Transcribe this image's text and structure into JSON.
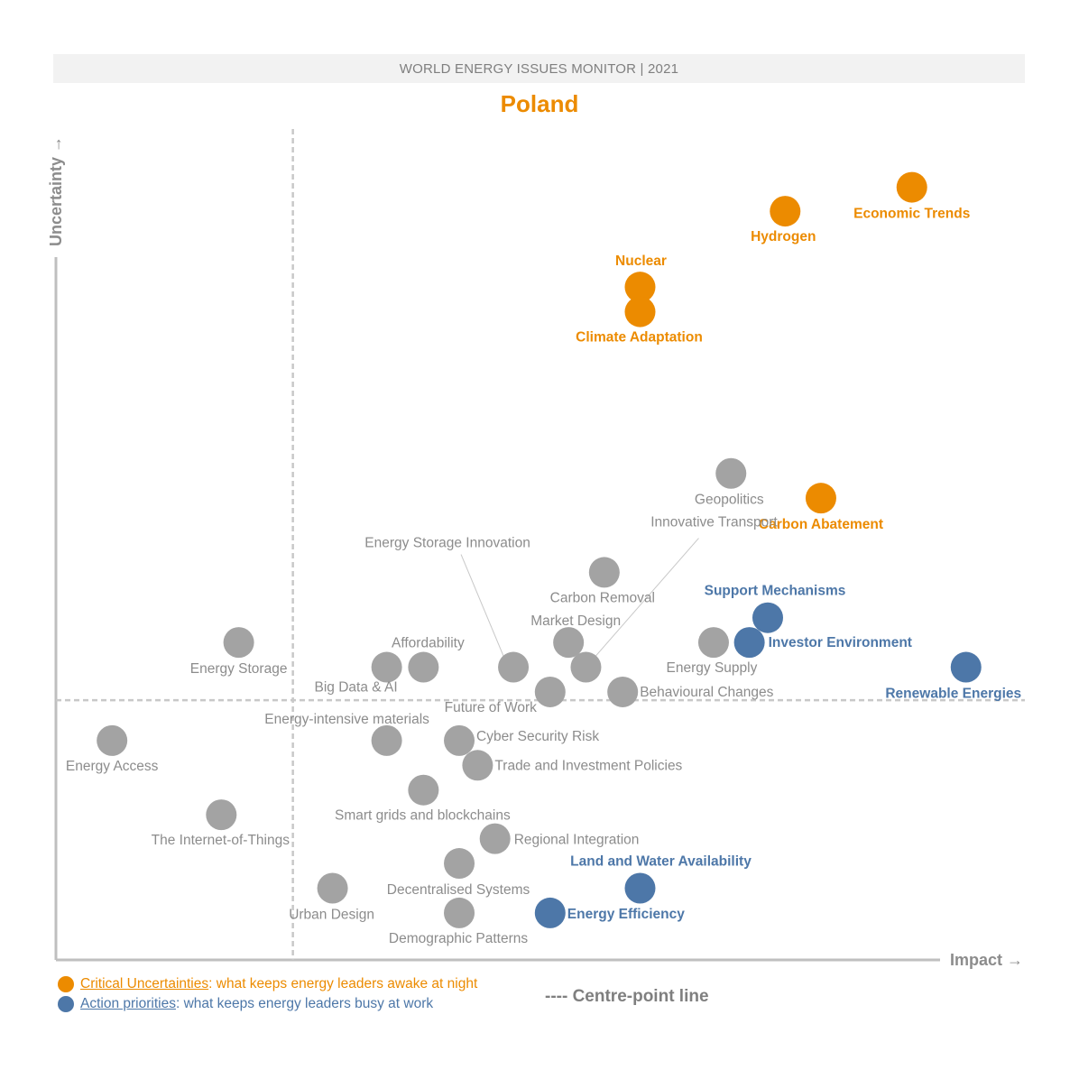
{
  "banner": "WORLD ENERGY ISSUES MONITOR | 2021",
  "colors": {
    "critical": "#ec8b00",
    "action": "#4d77a8",
    "other": "#a3a3a3",
    "axis": "#bfbfbf",
    "centre": "#c8c8c8"
  },
  "legend": {
    "critical_key": "Critical Uncertainties",
    "critical_text": ": what keeps energy leaders awake at night",
    "action_key": "Action priorities",
    "action_text": ": what keeps energy leaders busy at work",
    "centre_line": "---- Centre-point line"
  },
  "chart_data": {
    "type": "scatter",
    "title": "Poland",
    "xlabel": "Impact →",
    "ylabel": "Uncertainty →",
    "xlim": [
      0,
      100
    ],
    "ylim": [
      0,
      100
    ],
    "centre_point": {
      "x": 24.5,
      "y": 31.5
    },
    "grid": false,
    "points": [
      {
        "name": "Economic Trends",
        "x": 88.5,
        "y": 93.7,
        "cat": "critical"
      },
      {
        "name": "Hydrogen",
        "x": 75.4,
        "y": 90.8,
        "cat": "critical"
      },
      {
        "name": "Nuclear",
        "x": 60.4,
        "y": 81.6,
        "cat": "critical"
      },
      {
        "name": "Climate Adaptation",
        "x": 60.4,
        "y": 78.6,
        "cat": "critical"
      },
      {
        "name": "Carbon Abatement",
        "x": 79.1,
        "y": 56.0,
        "cat": "critical"
      },
      {
        "name": "Geopolitics",
        "x": 69.8,
        "y": 59.0,
        "cat": "other"
      },
      {
        "name": "Innovative Transport",
        "x": 54.8,
        "y": 35.5,
        "cat": "other"
      },
      {
        "name": "Energy Storage Innovation",
        "x": 47.3,
        "y": 35.5,
        "cat": "other"
      },
      {
        "name": "Carbon Removal",
        "x": 56.7,
        "y": 47.0,
        "cat": "other"
      },
      {
        "name": "Support Mechanisms",
        "x": 73.6,
        "y": 41.5,
        "cat": "action"
      },
      {
        "name": "Investor Environment",
        "x": 71.7,
        "y": 38.5,
        "cat": "action"
      },
      {
        "name": "Market Design",
        "x": 53.0,
        "y": 38.5,
        "cat": "other"
      },
      {
        "name": "Energy Supply",
        "x": 68.0,
        "y": 38.5,
        "cat": "other"
      },
      {
        "name": "Renewable Energies",
        "x": 94.1,
        "y": 35.5,
        "cat": "action"
      },
      {
        "name": "Energy Storage",
        "x": 18.9,
        "y": 38.5,
        "cat": "other"
      },
      {
        "name": "Affordability",
        "x": 38.0,
        "y": 35.5,
        "cat": "other"
      },
      {
        "name": "Big Data & AI",
        "x": 34.2,
        "y": 35.5,
        "cat": "other"
      },
      {
        "name": "Future of Work",
        "x": 51.1,
        "y": 32.5,
        "cat": "other"
      },
      {
        "name": "Behavioural Changes",
        "x": 58.6,
        "y": 32.5,
        "cat": "other"
      },
      {
        "name": "Energy-intensive materials",
        "x": 34.2,
        "y": 26.6,
        "cat": "other"
      },
      {
        "name": "Cyber Security Risk",
        "x": 41.7,
        "y": 26.6,
        "cat": "other"
      },
      {
        "name": "Energy Access",
        "x": 5.8,
        "y": 26.6,
        "cat": "other"
      },
      {
        "name": "Trade and Investment Policies",
        "x": 43.6,
        "y": 23.6,
        "cat": "other"
      },
      {
        "name": "Smart grids and blockchains",
        "x": 38.0,
        "y": 20.6,
        "cat": "other"
      },
      {
        "name": "The Internet-of-Things",
        "x": 17.1,
        "y": 17.6,
        "cat": "other"
      },
      {
        "name": "Regional Integration",
        "x": 45.4,
        "y": 14.7,
        "cat": "other"
      },
      {
        "name": "Decentralised Systems",
        "x": 41.7,
        "y": 11.7,
        "cat": "other"
      },
      {
        "name": "Land and Water Availability",
        "x": 60.4,
        "y": 8.7,
        "cat": "action"
      },
      {
        "name": "Urban Design",
        "x": 28.6,
        "y": 8.7,
        "cat": "other"
      },
      {
        "name": "Demographic Patterns",
        "x": 41.7,
        "y": 5.7,
        "cat": "other"
      },
      {
        "name": "Energy Efficiency",
        "x": 51.1,
        "y": 5.7,
        "cat": "action"
      }
    ]
  }
}
